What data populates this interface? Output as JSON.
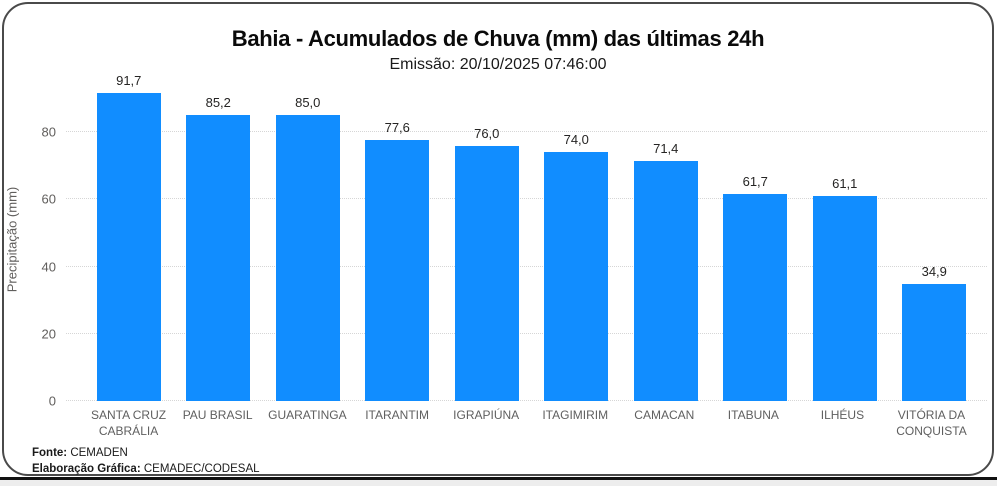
{
  "chart_data": {
    "type": "bar",
    "title": "Bahia - Acumulados de Chuva (mm) das últimas 24h",
    "subtitle": "Emissão: 20/10/2025 07:46:00",
    "ylabel": "Precipitação (mm)",
    "xlabel": "",
    "categories": [
      "SANTA CRUZ CABRÁLIA",
      "PAU BRASIL",
      "GUARATINGA",
      "ITARANTIM",
      "IGRAPIÚNA",
      "ITAGIMIRIM",
      "CAMACAN",
      "ITABUNA",
      "ILHÉUS",
      "VITÓRIA DA CONQUISTA"
    ],
    "values": [
      91.7,
      85.2,
      85.0,
      77.6,
      76.0,
      74.0,
      71.4,
      61.7,
      61.1,
      34.9
    ],
    "value_labels": [
      "91,7",
      "85,2",
      "85,0",
      "77,6",
      "76,0",
      "74,0",
      "71,4",
      "61,7",
      "61,1",
      "34,9"
    ],
    "yticks": [
      0,
      20,
      40,
      60,
      80
    ],
    "ylim": [
      0,
      94.3
    ],
    "grid": "horizontal-dotted",
    "legend_position": "none",
    "bar_color": "#118dff",
    "grid_color": "#d6d6d6",
    "axis_text_color": "#605e5c"
  },
  "footer": {
    "fonte_label": "Fonte:",
    "fonte_value": " CEMADEN",
    "elaboracao_label": "Elaboração Gráfica:",
    "elaboracao_value": " CEMADEC/CODESAL"
  }
}
